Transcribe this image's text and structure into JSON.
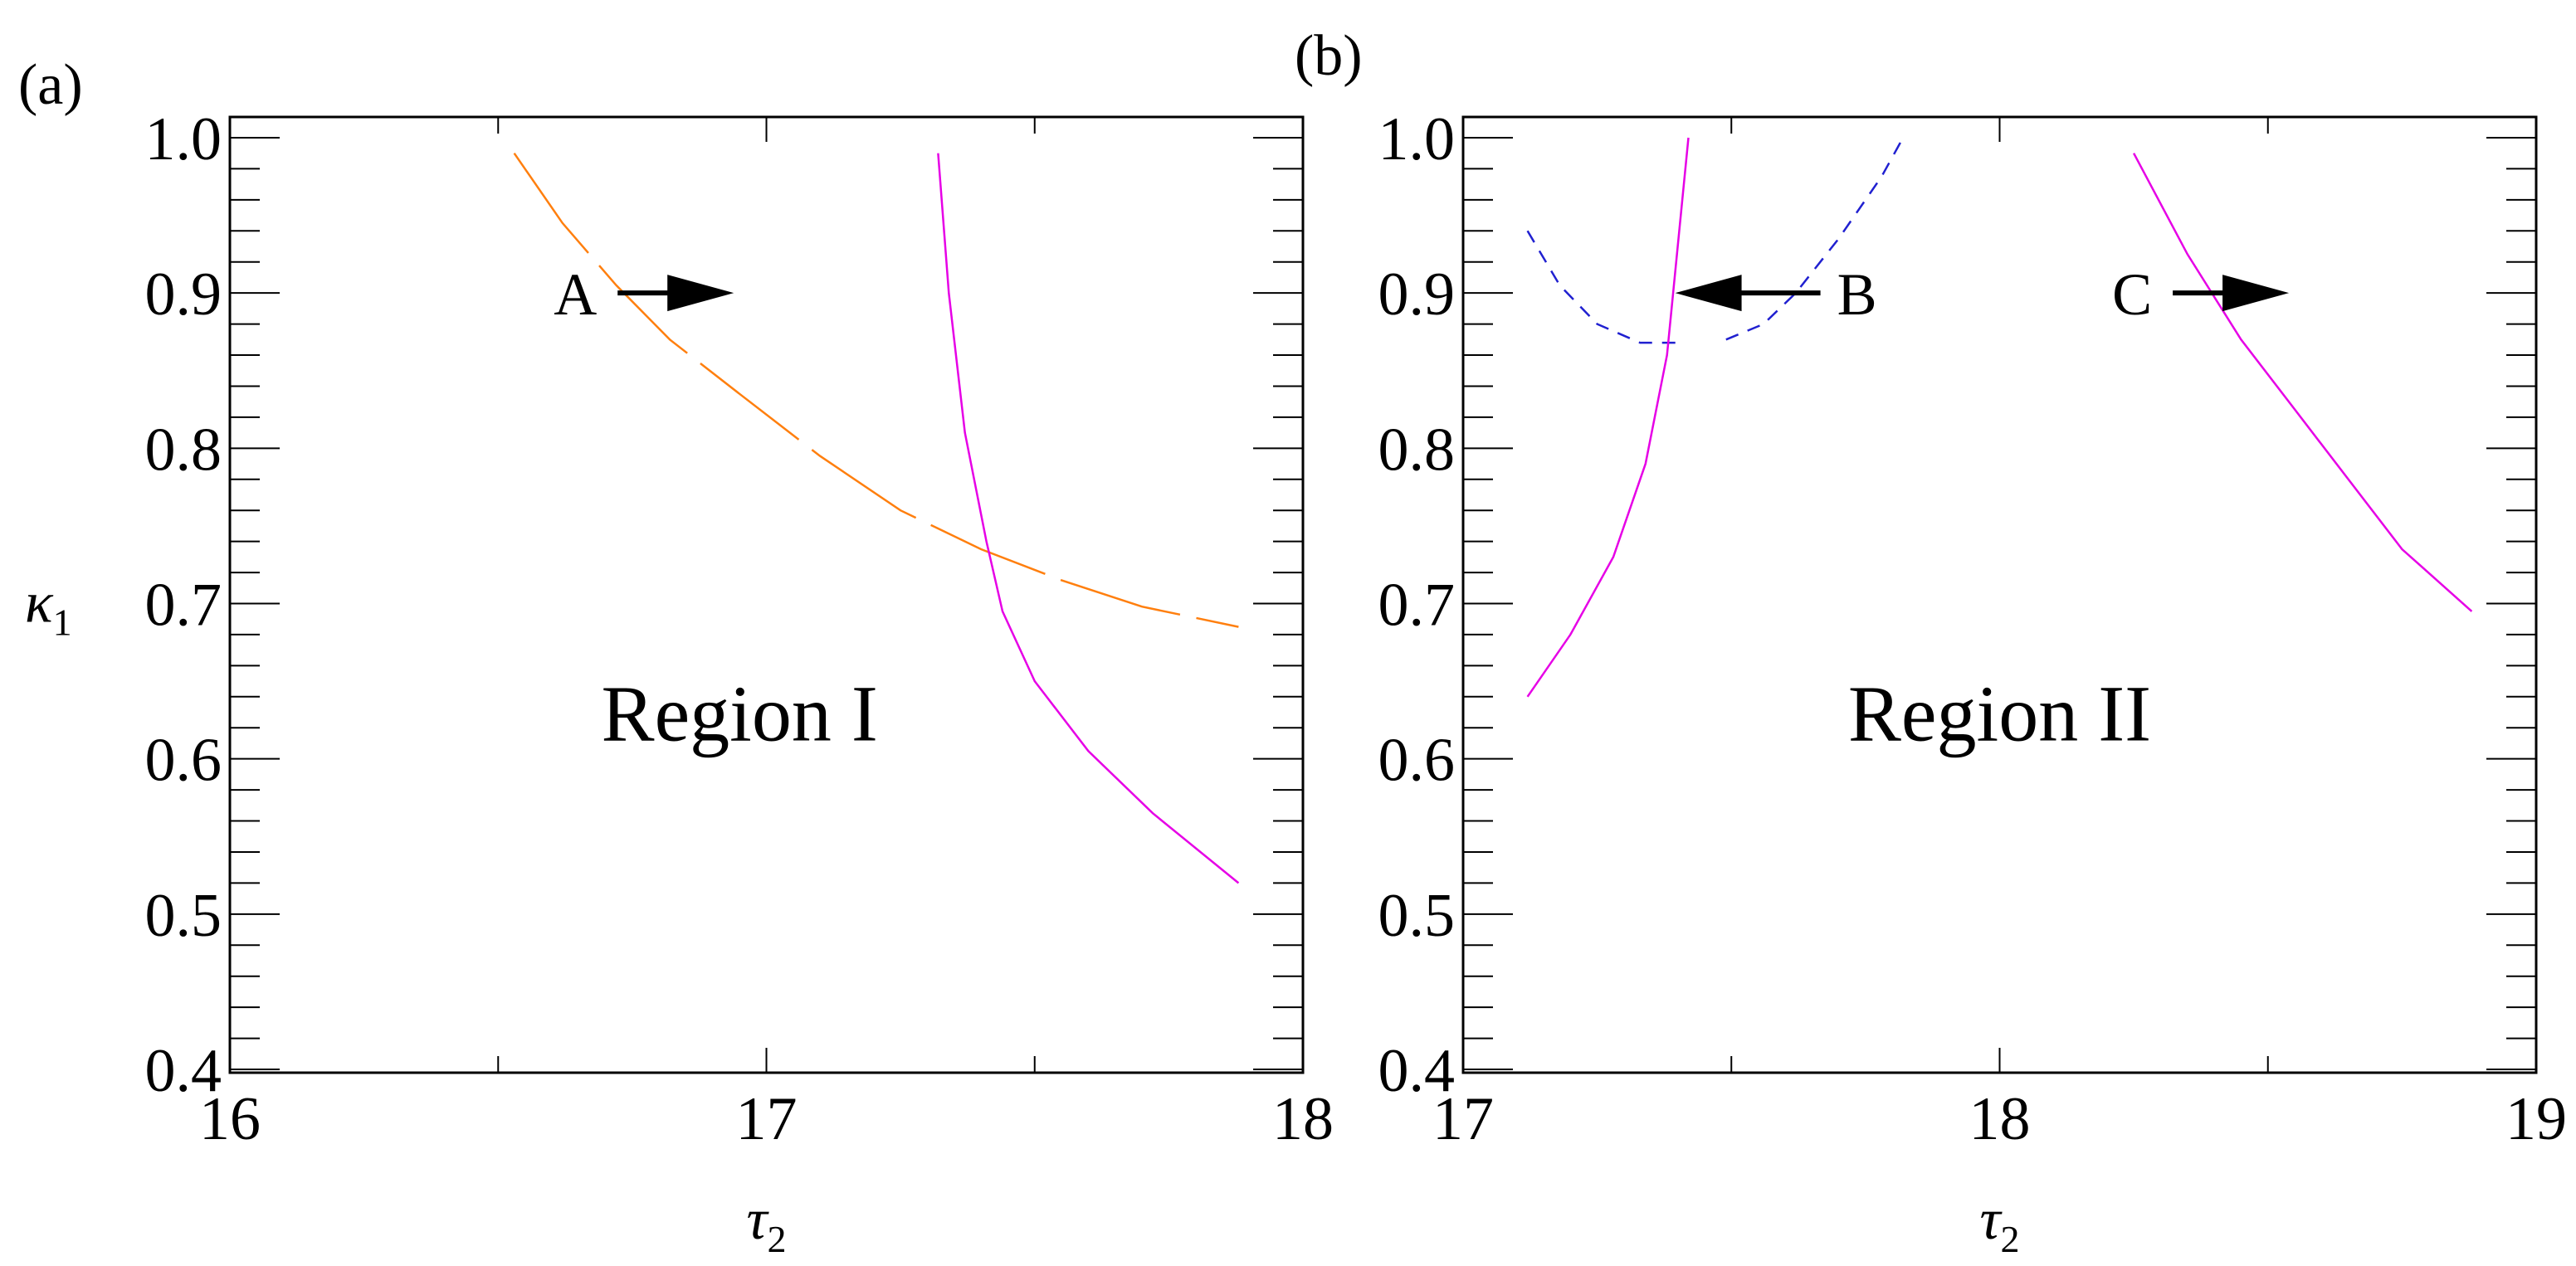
{
  "chart_data": [
    {
      "type": "line",
      "panel_label": "(a)",
      "xlabel_symbol": "τ",
      "xlabel_subscript": "2",
      "ylabel_symbol": "κ",
      "ylabel_subscript": "1",
      "xlim": [
        16,
        18
      ],
      "ylim": [
        0.4,
        1.0
      ],
      "xticks": [
        "16",
        "17",
        "18"
      ],
      "yticks": [
        "0.4",
        "0.5",
        "0.6",
        "0.7",
        "0.8",
        "0.9",
        "1.0"
      ],
      "grid": false,
      "series": [
        {
          "color": "#ff7f0e",
          "style": "dashed-long",
          "points": [
            [
              16.53,
              0.99
            ],
            [
              16.62,
              0.945
            ],
            [
              16.72,
              0.905
            ],
            [
              16.82,
              0.87
            ],
            [
              16.95,
              0.835
            ],
            [
              17.1,
              0.795
            ],
            [
              17.25,
              0.76
            ],
            [
              17.4,
              0.735
            ],
            [
              17.55,
              0.715
            ],
            [
              17.7,
              0.698
            ],
            [
              17.88,
              0.685
            ]
          ]
        },
        {
          "color": "#e600e6",
          "style": "solid",
          "points": [
            [
              17.32,
              0.99
            ],
            [
              17.34,
              0.9
            ],
            [
              17.37,
              0.81
            ],
            [
              17.41,
              0.74
            ],
            [
              17.44,
              0.695
            ],
            [
              17.5,
              0.65
            ],
            [
              17.6,
              0.605
            ],
            [
              17.72,
              0.565
            ],
            [
              17.88,
              0.52
            ]
          ]
        }
      ],
      "annotations": [
        {
          "text": "A",
          "x": 16.8,
          "y": 0.9,
          "arrow": "right"
        },
        {
          "text": "Region I",
          "x": 16.95,
          "y": 0.63
        }
      ]
    },
    {
      "type": "line",
      "panel_label": "(b)",
      "xlabel_symbol": "τ",
      "xlabel_subscript": "2",
      "xlim": [
        17,
        19
      ],
      "ylim": [
        0.4,
        1.0
      ],
      "xticks": [
        "17",
        "18",
        "19"
      ],
      "yticks": [
        "0.4",
        "0.5",
        "0.6",
        "0.7",
        "0.8",
        "0.9",
        "1.0"
      ],
      "grid": false,
      "series": [
        {
          "color": "#2020d0",
          "style": "dashed",
          "points": [
            [
              17.12,
              0.94
            ],
            [
              17.18,
              0.905
            ],
            [
              17.25,
              0.88
            ],
            [
              17.33,
              0.868
            ],
            [
              17.4,
              0.868
            ]
          ]
        },
        {
          "color": "#2020d0",
          "style": "dashed",
          "points": [
            [
              17.49,
              0.87
            ],
            [
              17.56,
              0.88
            ],
            [
              17.62,
              0.9
            ],
            [
              17.7,
              0.935
            ],
            [
              17.78,
              0.975
            ],
            [
              17.82,
              1.0
            ]
          ]
        },
        {
          "color": "#e600e6",
          "style": "solid",
          "points": [
            [
              17.12,
              0.64
            ],
            [
              17.2,
              0.68
            ],
            [
              17.28,
              0.73
            ],
            [
              17.34,
              0.79
            ],
            [
              17.38,
              0.86
            ],
            [
              17.4,
              0.93
            ],
            [
              17.42,
              1.0
            ]
          ]
        },
        {
          "color": "#e600e6",
          "style": "solid",
          "points": [
            [
              18.25,
              0.99
            ],
            [
              18.35,
              0.925
            ],
            [
              18.45,
              0.87
            ],
            [
              18.55,
              0.825
            ],
            [
              18.65,
              0.78
            ],
            [
              18.75,
              0.735
            ],
            [
              18.88,
              0.695
            ]
          ]
        }
      ],
      "annotations": [
        {
          "text": "B",
          "x": 17.55,
          "y": 0.9,
          "arrow": "left"
        },
        {
          "text": "C",
          "x": 18.4,
          "y": 0.9,
          "arrow": "right"
        },
        {
          "text": "Region II",
          "x": 18.0,
          "y": 0.63
        }
      ]
    }
  ]
}
